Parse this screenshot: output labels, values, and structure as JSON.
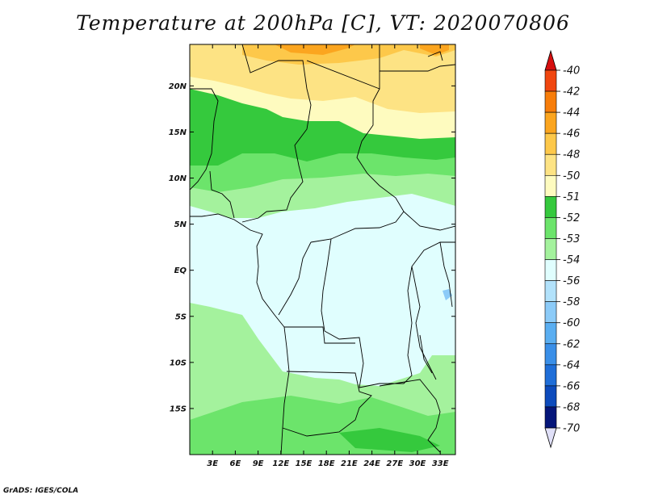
{
  "title": "Temperature at 200hPa [C], VT: 2020070806",
  "footer": "GrADS: IGES/COLA",
  "lat_labels": [
    "20N",
    "15N",
    "10N",
    "5N",
    "EQ",
    "5S",
    "10S",
    "15S"
  ],
  "lon_labels": [
    "3E",
    "6E",
    "9E",
    "12E",
    "15E",
    "18E",
    "21E",
    "24E",
    "27E",
    "30E",
    "33E"
  ],
  "colorbar": {
    "levels": [
      "-40",
      "-42",
      "-44",
      "-46",
      "-48",
      "-50",
      "-51",
      "-52",
      "-53",
      "-54",
      "-56",
      "-58",
      "-60",
      "-62",
      "-64",
      "-66",
      "-68",
      "-70"
    ],
    "colors": [
      "#e6141e",
      "#f0460f",
      "#f77d0a",
      "#fba51f",
      "#fdc84a",
      "#fde384",
      "#fefbbf",
      "#35c93d",
      "#6ce46b",
      "#a4f29d",
      "#e0fefe",
      "#b2e2fb",
      "#8ccbf8",
      "#5aaef1",
      "#3a8fe8",
      "#1f6ed8",
      "#0d4bbc",
      "#05167a"
    ],
    "top_arrow_color": "#d60f0f",
    "bottom_arrow_color": "#e0e0f8"
  },
  "map": {
    "lat_range": [
      -20,
      24.5
    ],
    "lon_range": [
      0,
      35
    ],
    "field": "Temperature at 200hPa (C)"
  }
}
